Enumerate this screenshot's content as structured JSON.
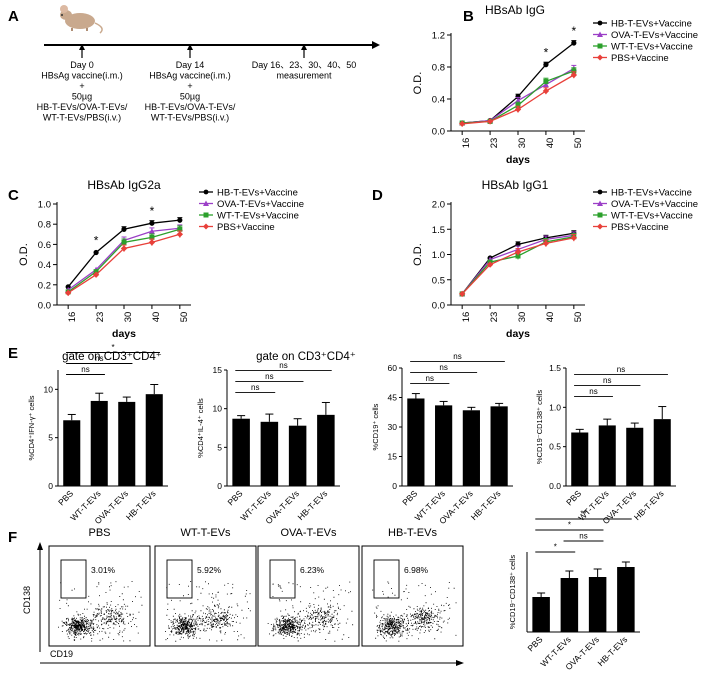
{
  "panels": {
    "A": {
      "letter": "A",
      "timeline": [
        {
          "lines": [
            "Day 0",
            "HBsAg  vaccine(i.m.)",
            "+",
            "50µg",
            "HB-T-EVs/OVA-T-EVs/",
            "WT-T-EVs/PBS(i.v.)"
          ]
        },
        {
          "lines": [
            "Day 14",
            "HBsAg  vaccine(i.m.)",
            "+",
            "50µg",
            "HB-T-EVs/OVA-T-EVs/",
            "WT-T-EVs/PBS(i.v.)"
          ]
        },
        {
          "lines": [
            "Day 16、23、30、40、50",
            "measurement"
          ]
        }
      ]
    },
    "E": {
      "letter": "E"
    },
    "F": {
      "letter": "F"
    }
  },
  "legend_labels": [
    "HB-T-EVs+Vaccine",
    "OVA-T-EVs+Vaccine",
    "WT-T-EVs+Vaccine",
    "PBS+Vaccine"
  ],
  "colors": {
    "HB": "#000000",
    "OVA": "#9b3fc7",
    "WT": "#2ca02c",
    "PBS": "#e8403a"
  },
  "chart_data": [
    {
      "id": "B",
      "letter": "B",
      "type": "line",
      "title": "HBsAb IgG",
      "xlabel": "days",
      "ylabel": "O.D.",
      "x": [
        16,
        23,
        30,
        40,
        50
      ],
      "ylim": [
        0,
        1.2
      ],
      "yticks": [
        "0.0",
        "0.4",
        "0.8",
        "1.2"
      ],
      "ytickvals": [
        0,
        0.4,
        0.8,
        1.2
      ],
      "series": [
        {
          "name": "HB-T-EVs+Vaccine",
          "values": [
            0.1,
            0.13,
            0.43,
            0.83,
            1.1
          ]
        },
        {
          "name": "OVA-T-EVs+Vaccine",
          "values": [
            0.1,
            0.13,
            0.38,
            0.58,
            0.78
          ]
        },
        {
          "name": "WT-T-EVs+Vaccine",
          "values": [
            0.1,
            0.12,
            0.32,
            0.62,
            0.75
          ]
        },
        {
          "name": "PBS+Vaccine",
          "values": [
            0.09,
            0.12,
            0.27,
            0.5,
            0.7
          ]
        }
      ],
      "annotations": [
        {
          "x": 40,
          "text": "*"
        },
        {
          "x": 50,
          "text": "*"
        }
      ]
    },
    {
      "id": "C",
      "letter": "C",
      "type": "line",
      "title": "HBsAb IgG2a",
      "xlabel": "days",
      "ylabel": "O.D.",
      "x": [
        16,
        23,
        30,
        40,
        50
      ],
      "ylim": [
        0,
        1.0
      ],
      "yticks": [
        "0.0",
        "0.2",
        "0.4",
        "0.6",
        "0.8",
        "1.0"
      ],
      "ytickvals": [
        0,
        0.2,
        0.4,
        0.6,
        0.8,
        1.0
      ],
      "series": [
        {
          "name": "HB-T-EVs+Vaccine",
          "values": [
            0.18,
            0.52,
            0.75,
            0.81,
            0.84
          ]
        },
        {
          "name": "OVA-T-EVs+Vaccine",
          "values": [
            0.15,
            0.35,
            0.64,
            0.73,
            0.76
          ]
        },
        {
          "name": "WT-T-EVs+Vaccine",
          "values": [
            0.13,
            0.33,
            0.62,
            0.67,
            0.75
          ]
        },
        {
          "name": "PBS+Vaccine",
          "values": [
            0.12,
            0.3,
            0.56,
            0.62,
            0.7
          ]
        }
      ],
      "annotations": [
        {
          "x": 23,
          "text": "*"
        },
        {
          "x": 40,
          "text": "*"
        }
      ]
    },
    {
      "id": "D",
      "letter": "D",
      "type": "line",
      "title": "HBsAb IgG1",
      "xlabel": "days",
      "ylabel": "O.D.",
      "x": [
        16,
        23,
        30,
        40,
        50
      ],
      "ylim": [
        0,
        2.0
      ],
      "yticks": [
        "0.0",
        "0.5",
        "1.0",
        "1.5",
        "2.0"
      ],
      "ytickvals": [
        0,
        0.5,
        1.0,
        1.5,
        2.0
      ],
      "series": [
        {
          "name": "HB-T-EVs+Vaccine",
          "values": [
            0.22,
            0.93,
            1.2,
            1.33,
            1.42
          ]
        },
        {
          "name": "OVA-T-EVs+Vaccine",
          "values": [
            0.22,
            0.9,
            1.1,
            1.3,
            1.38
          ]
        },
        {
          "name": "WT-T-EVs+Vaccine",
          "values": [
            0.22,
            0.85,
            0.97,
            1.25,
            1.35
          ]
        },
        {
          "name": "PBS+Vaccine",
          "values": [
            0.22,
            0.8,
            1.05,
            1.22,
            1.33
          ]
        }
      ],
      "annotations": []
    },
    {
      "id": "E1",
      "type": "bar",
      "title": "gate on CD3⁺CD4⁺",
      "ylabel": "%CD4⁺IFN-γ⁺ cells",
      "categories": [
        "PBS",
        "WT-T-EVs",
        "OVA-T-EVs",
        "HB-T-EVs"
      ],
      "values": [
        6.8,
        8.8,
        8.7,
        9.5
      ],
      "errors": [
        0.6,
        0.8,
        0.5,
        1.0
      ],
      "ylim": [
        0,
        12
      ],
      "yticks": [
        "0",
        "5",
        "10"
      ],
      "ytickvals": [
        0,
        5,
        10
      ],
      "brackets": [
        {
          "from": 0,
          "to": 1,
          "text": "ns"
        },
        {
          "from": 0,
          "to": 2,
          "text": "ns"
        },
        {
          "from": 0,
          "to": 3,
          "text": "*"
        }
      ]
    },
    {
      "id": "E2",
      "type": "bar",
      "title": "gate on CD3⁺CD4⁺",
      "ylabel": "%CD4⁺IL-4⁺ cells",
      "categories": [
        "PBS",
        "WT-T-EVs",
        "OVA-T-EVs",
        "HB-T-EVs"
      ],
      "values": [
        8.7,
        8.3,
        7.8,
        9.2
      ],
      "errors": [
        0.4,
        1.0,
        0.9,
        1.6
      ],
      "ylim": [
        0,
        15
      ],
      "yticks": [
        "0",
        "5",
        "10",
        "15"
      ],
      "ytickvals": [
        0,
        5,
        10,
        15
      ],
      "brackets": [
        {
          "from": 0,
          "to": 1,
          "text": "ns"
        },
        {
          "from": 0,
          "to": 2,
          "text": "ns"
        },
        {
          "from": 0,
          "to": 3,
          "text": "ns"
        }
      ]
    },
    {
      "id": "E3",
      "type": "bar",
      "title": "",
      "ylabel": "%CD19⁺ cells",
      "categories": [
        "PBS",
        "WT-T-EVs",
        "OVA-T-EVs",
        "HB-T-EVs"
      ],
      "values": [
        44.5,
        41.0,
        38.5,
        40.5
      ],
      "errors": [
        2.5,
        2.0,
        1.5,
        1.5
      ],
      "ylim": [
        0,
        60
      ],
      "yticks": [
        "0",
        "15",
        "30",
        "45",
        "60"
      ],
      "ytickvals": [
        0,
        15,
        30,
        45,
        60
      ],
      "brackets": [
        {
          "from": 0,
          "to": 1,
          "text": "ns"
        },
        {
          "from": 0,
          "to": 2,
          "text": "ns"
        },
        {
          "from": 0,
          "to": 3,
          "text": "ns"
        }
      ]
    },
    {
      "id": "E4",
      "type": "bar",
      "title": "",
      "ylabel": "%CD19⁻CD138⁺ cells",
      "categories": [
        "PBS",
        "WT-T-EVs",
        "OVA-T-EVs",
        "HB-T-EVs"
      ],
      "values": [
        0.68,
        0.77,
        0.74,
        0.85
      ],
      "errors": [
        0.04,
        0.08,
        0.06,
        0.16
      ],
      "ylim": [
        0,
        1.5
      ],
      "yticks": [
        "0.0",
        "0.5",
        "1.0",
        "1.5"
      ],
      "ytickvals": [
        0,
        0.5,
        1.0,
        1.5
      ],
      "brackets": [
        {
          "from": 0,
          "to": 1,
          "text": "ns"
        },
        {
          "from": 0,
          "to": 2,
          "text": "ns"
        },
        {
          "from": 0,
          "to": 3,
          "text": "ns"
        }
      ]
    },
    {
      "id": "F2",
      "type": "bar",
      "title": "",
      "ylabel": "%CD19⁻CD138⁺ cells",
      "categories": [
        "PBS",
        "WT-T-EVs",
        "OVA-T-EVs",
        "HB-T-EVs"
      ],
      "values": [
        3.5,
        5.4,
        5.5,
        6.5
      ],
      "errors": [
        0.4,
        0.7,
        0.8,
        0.5
      ],
      "ylim": [
        0,
        8
      ],
      "yticks": [],
      "ytickvals": [],
      "brackets": [
        {
          "from": 0,
          "to": 1,
          "text": "*"
        },
        {
          "from": 1,
          "to": 2,
          "text": "ns"
        },
        {
          "from": 0,
          "to": 2,
          "text": "*"
        },
        {
          "from": 0,
          "to": 3,
          "text": "**"
        }
      ]
    },
    {
      "id": "F1",
      "type": "scatter",
      "title": "",
      "xlabel": "CD19",
      "ylabel": "CD138",
      "plots": [
        {
          "label": "PBS",
          "gate_pct": "3.01%"
        },
        {
          "label": "WT-T-EVs",
          "gate_pct": "5.92%"
        },
        {
          "label": "OVA-T-EVs",
          "gate_pct": "6.23%"
        },
        {
          "label": "HB-T-EVs",
          "gate_pct": "6.98%"
        }
      ]
    }
  ]
}
